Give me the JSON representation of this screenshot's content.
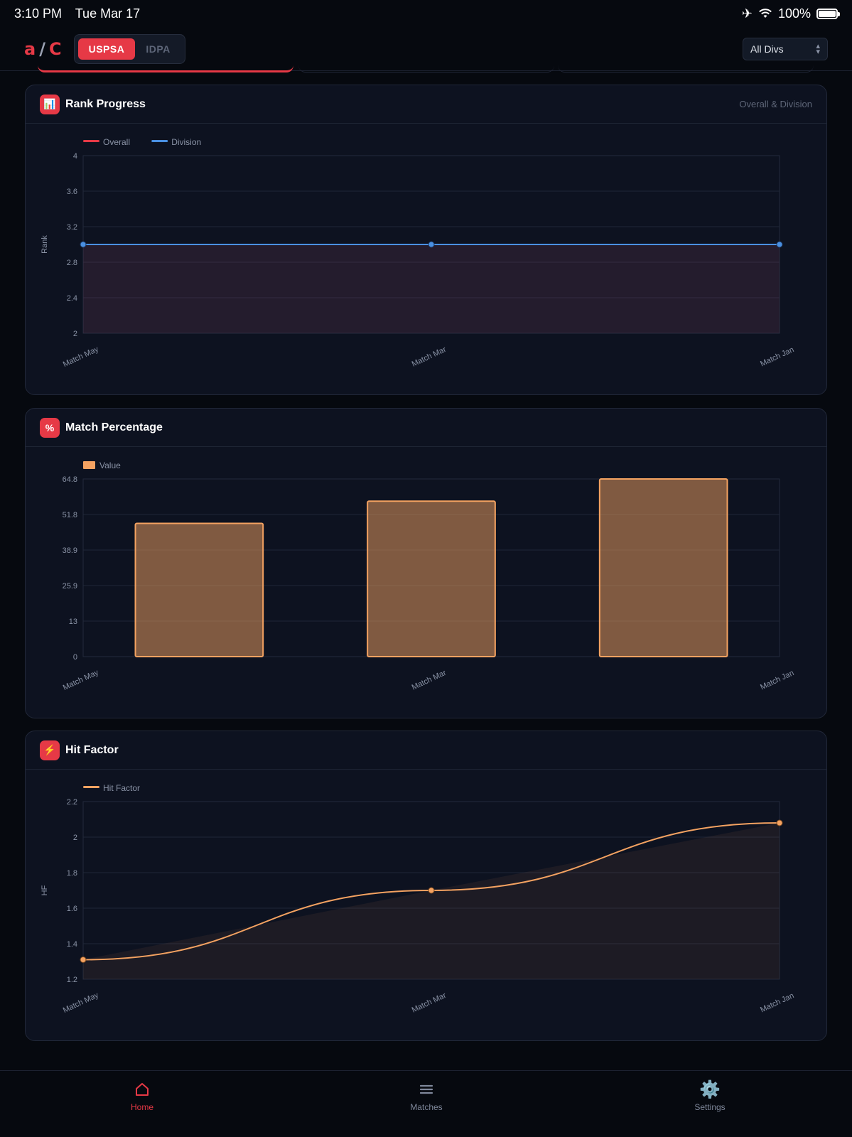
{
  "status": {
    "time": "3:10 PM",
    "date": "Tue Mar 17",
    "battery": "100%"
  },
  "header": {
    "logo": {
      "a": "a",
      "slash": "/",
      "c": "C"
    },
    "segments": [
      "USPSA",
      "IDPA"
    ],
    "active_segment": "USPSA",
    "division_select": "All Divs"
  },
  "cards": {
    "rank": {
      "icon": "📊",
      "title": "Rank Progress",
      "subtitle": "Overall & Division"
    },
    "match_pct": {
      "icon": "%",
      "title": "Match Percentage"
    },
    "hit_factor": {
      "icon": "⚡",
      "title": "Hit Factor"
    }
  },
  "tabs": [
    {
      "label": "Home",
      "icon": "home-icon",
      "active": true
    },
    {
      "label": "Matches",
      "icon": "list-icon",
      "active": false
    },
    {
      "label": "Settings",
      "icon": "gear-icon",
      "active": false
    }
  ],
  "colors": {
    "accent": "#e63946",
    "overall": "#e63946",
    "division": "#4a90e2",
    "value": "#f4a261"
  },
  "chart_data": [
    {
      "type": "line",
      "categories": [
        "Match May",
        "Match Mar",
        "Match Jan"
      ],
      "series": [
        {
          "name": "Overall",
          "values": [
            3,
            3,
            3
          ]
        },
        {
          "name": "Division",
          "values": [
            3,
            3,
            3
          ]
        }
      ],
      "ylabel": "Rank",
      "ylim": [
        2,
        4
      ],
      "yticks": [
        "4",
        "3.6",
        "3.2",
        "2.8",
        "2.4",
        "2"
      ],
      "legend": "top-left",
      "grid": true
    },
    {
      "type": "bar",
      "categories": [
        "Match May",
        "Match Mar",
        "Match Jan"
      ],
      "series": [
        {
          "name": "Value",
          "values": [
            48.6,
            56.7,
            64.8
          ]
        }
      ],
      "ylim": [
        0,
        64.8
      ],
      "yticks": [
        "64.8",
        "51.8",
        "38.9",
        "25.9",
        "13",
        "0"
      ],
      "legend": "top-left",
      "grid": true
    },
    {
      "type": "line",
      "categories": [
        "Match May",
        "Match Mar",
        "Match Jan"
      ],
      "series": [
        {
          "name": "Hit Factor",
          "values": [
            1.31,
            1.7,
            2.08
          ]
        }
      ],
      "ylabel": "HF",
      "ylim": [
        1.2,
        2.2
      ],
      "yticks": [
        "2.2",
        "2",
        "1.8",
        "1.6",
        "1.4",
        "1.2"
      ],
      "legend": "top-left",
      "grid": true
    }
  ]
}
